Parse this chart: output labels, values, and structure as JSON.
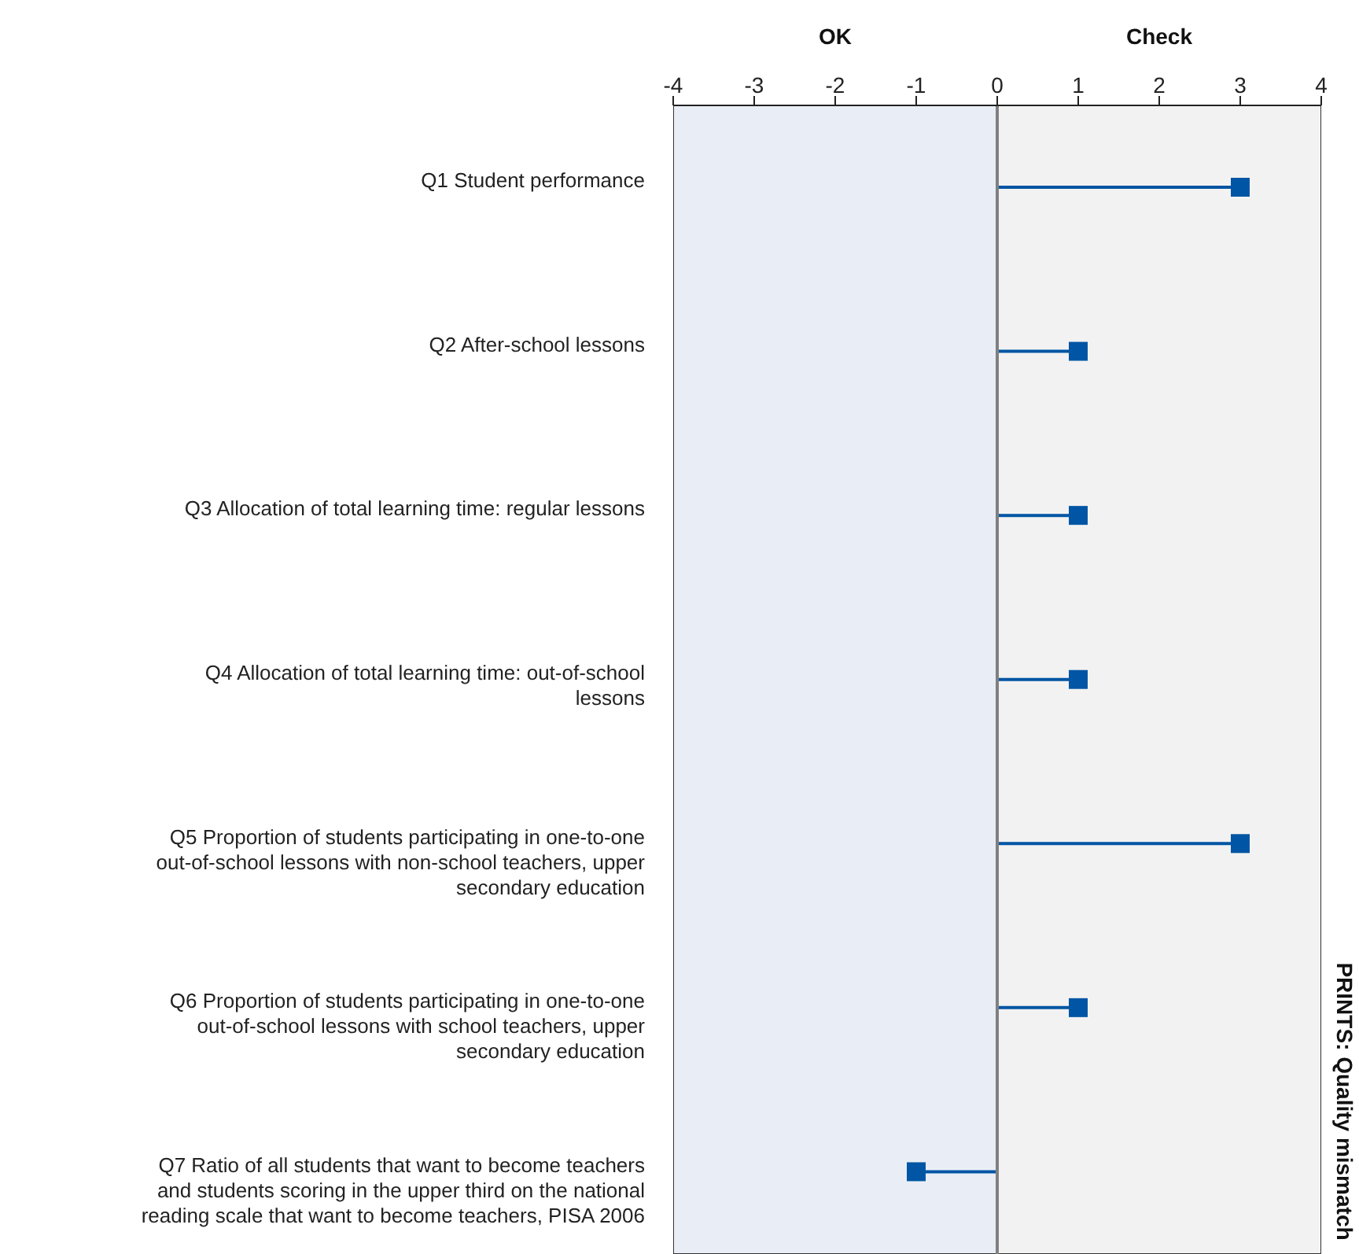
{
  "chart_data": {
    "type": "lollipop",
    "orientation": "horizontal",
    "categories": [
      "Q1 Student performance",
      "Q2 After-school lessons",
      "Q3 Allocation of total learning time: regular lessons",
      "Q4 Allocation of total learning time: out-of-school lessons",
      "Q5 Proportion of students participating in one-to-one out-of-school lessons with non-school teachers, upper secondary education",
      "Q6 Proportion of students participating in one-to-one out-of-school lessons with school teachers, upper secondary education",
      "Q7 Ratio of all students that want to become teachers and students scoring in the upper third on the national reading scale that want to become teachers, PISA 2006"
    ],
    "values": [
      3,
      1,
      1,
      1,
      3,
      1,
      -1
    ],
    "color": "#0055a4",
    "marker": "square",
    "xlim": [
      -4,
      4
    ],
    "xticks": [
      -4,
      -3,
      -2,
      -1,
      0,
      1,
      2,
      3,
      4
    ],
    "bands": [
      {
        "axis": "x",
        "from": -4,
        "to": 0,
        "label": "OK",
        "color": "#e9eef6"
      },
      {
        "axis": "x",
        "from": 0,
        "to": 4,
        "label": "Check",
        "color": "#f2f2f2"
      }
    ],
    "ref_lines": [
      {
        "axis": "x",
        "value": 0,
        "color": "#808080"
      }
    ],
    "y2label": "PRINTS: Quality mismatch",
    "grid": false
  }
}
